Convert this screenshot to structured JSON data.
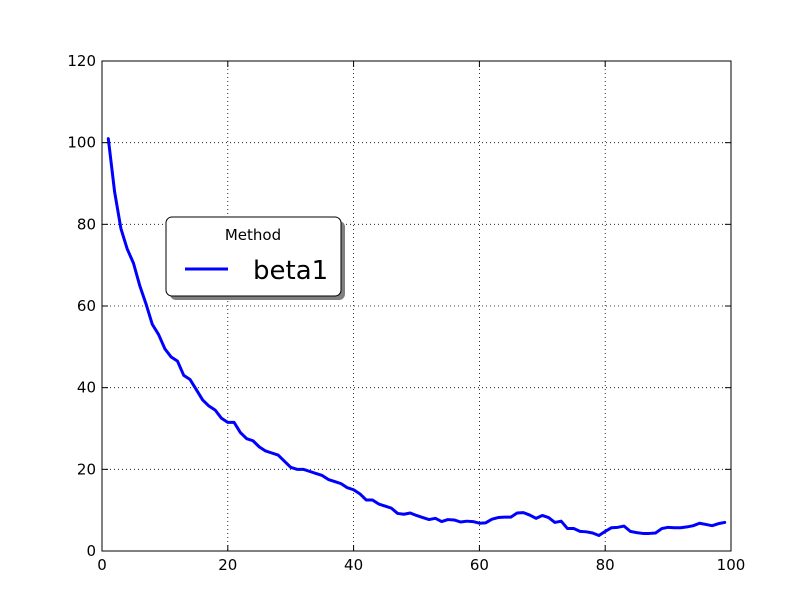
{
  "chart_data": {
    "type": "line",
    "xlim": [
      0,
      100
    ],
    "ylim": [
      0,
      120
    ],
    "x_ticks": [
      "0",
      "20",
      "40",
      "60",
      "80",
      "100"
    ],
    "y_ticks": [
      "0",
      "20",
      "40",
      "60",
      "80",
      "100",
      "120"
    ],
    "grid": true,
    "legend": {
      "title": "Method",
      "placement": "center-left"
    },
    "series": [
      {
        "name": "beta1",
        "color": "#0000ff",
        "x": [
          1,
          2,
          3,
          4,
          5,
          6,
          7,
          8,
          9,
          10,
          11,
          12,
          13,
          14,
          15,
          16,
          17,
          18,
          19,
          20,
          21,
          22,
          23,
          24,
          25,
          26,
          27,
          28,
          29,
          30,
          31,
          32,
          33,
          34,
          35,
          36,
          37,
          38,
          39,
          40,
          41,
          42,
          43,
          44,
          45,
          46,
          47,
          48,
          49,
          50,
          51,
          52,
          53,
          54,
          55,
          56,
          57,
          58,
          59,
          60,
          61,
          62,
          63,
          64,
          65,
          66,
          67,
          68,
          69,
          70,
          71,
          72,
          73,
          74,
          75,
          76,
          77,
          78,
          79,
          80,
          81,
          82,
          83,
          84,
          85,
          86,
          87,
          88,
          89,
          90,
          91,
          92,
          93,
          94,
          95,
          96,
          97,
          98,
          99
        ],
        "y": [
          101,
          88,
          79,
          74,
          70.5,
          65,
          60.5,
          55.5,
          53,
          49.5,
          47.5,
          46.5,
          43,
          42,
          39.5,
          37,
          35.5,
          34.5,
          32.5,
          31.5,
          31.5,
          29,
          27.5,
          27,
          25.5,
          24.5,
          24,
          23.5,
          22,
          20.5,
          20,
          20,
          19.5,
          19,
          18.5,
          17.5,
          17,
          16.5,
          15.5,
          15,
          14,
          12.5,
          12.5,
          11.5,
          11,
          10.5,
          9.2,
          9,
          9.3,
          8.7,
          8.2,
          7.7,
          8,
          7.2,
          7.7,
          7.6,
          7.1,
          7.3,
          7.2,
          6.8,
          6.9,
          7.8,
          8.2,
          8.3,
          8.3,
          9.3,
          9.4,
          8.8,
          8,
          8.7,
          8.2,
          7,
          7.3,
          5.5,
          5.5,
          4.8,
          4.7,
          4.4,
          3.8,
          4.8,
          5.7,
          5.8,
          6.1,
          4.8,
          4.5,
          4.3,
          4.3,
          4.4,
          5.5,
          5.8,
          5.7,
          5.7,
          5.9,
          6.2,
          6.8,
          6.5,
          6.2,
          6.7,
          7
        ]
      }
    ]
  }
}
